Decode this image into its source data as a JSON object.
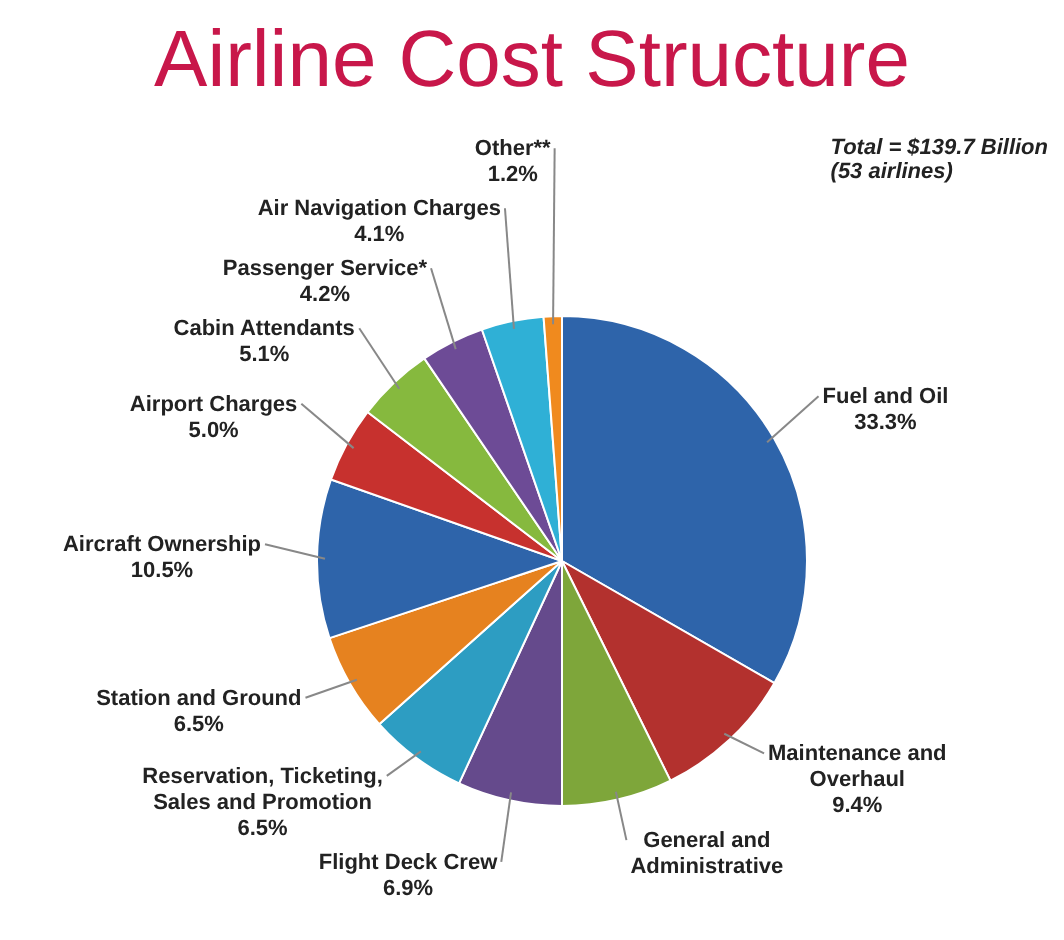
{
  "chart_data": {
    "type": "pie",
    "title": "Airline Cost Structure",
    "categories": [
      "Fuel and Oil",
      "Maintenance and Overhaul",
      "General and Administrative",
      "Flight Deck Crew",
      "Reservation, Ticketing, Sales and Promotion",
      "Station and Ground",
      "Aircraft Ownership",
      "Airport Charges",
      "Cabin Attendants",
      "Passenger Service*",
      "Air Navigation Charges",
      "Other**"
    ],
    "values": [
      33.3,
      9.4,
      7.3,
      6.9,
      6.5,
      6.5,
      10.5,
      5.0,
      5.1,
      4.2,
      4.1,
      1.2
    ],
    "colors": [
      "#2e64aa",
      "#b3312e",
      "#7ea63a",
      "#654a8c",
      "#2d9dc2",
      "#e6821f",
      "#2e64aa",
      "#c7312e",
      "#86b93e",
      "#6d4b96",
      "#2fb0d6",
      "#f08a1e"
    ],
    "value_labels": [
      "33.3%",
      "9.4%",
      null,
      "6.9%",
      "6.5%",
      "6.5%",
      "10.5%",
      "5.0%",
      "5.1%",
      "4.2%",
      "4.1%",
      "1.2%"
    ],
    "legend": false,
    "annotations": [
      "Total = $139.7 Billion\n(53 airlines)"
    ]
  }
}
